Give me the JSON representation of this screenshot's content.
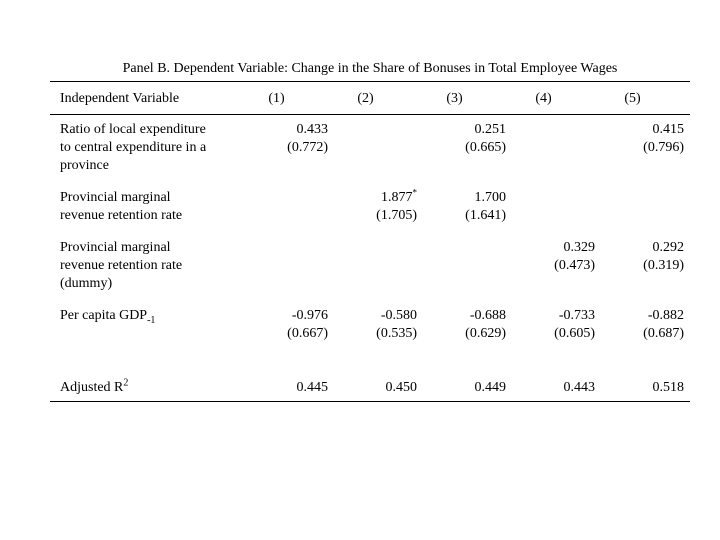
{
  "page": {
    "background_color": "#ffffff",
    "text_color": "#000000"
  },
  "table": {
    "title": "Panel B. Dependent Variable: Change in the Share of Bonuses in Total Employee Wages",
    "header": {
      "label": "Independent Variable",
      "columns": [
        "(1)",
        "(2)",
        "(3)",
        "(4)",
        "(5)"
      ]
    },
    "rows": [
      {
        "label": "Ratio of local expenditure\nto central expenditure in a\nprovince",
        "cells": [
          {
            "est": "0.433",
            "se": "(0.772)"
          },
          {},
          {
            "est": "0.251",
            "se": "(0.665)"
          },
          {},
          {
            "est": "0.415",
            "se": "(0.796)"
          }
        ]
      },
      {
        "label": "Provincial marginal\nrevenue retention rate",
        "cells": [
          {},
          {
            "est": "1.877",
            "sup": "*",
            "se": "(1.705)"
          },
          {
            "est": "1.700",
            "se": "(1.641)"
          },
          {},
          {}
        ]
      },
      {
        "label": "Provincial marginal\nrevenue retention rate\n(dummy)",
        "cells": [
          {},
          {},
          {},
          {
            "est": "0.329",
            "se": "(0.473)"
          },
          {
            "est": "0.292",
            "se": "(0.319)"
          }
        ]
      },
      {
        "label": "Per capita GDP",
        "label_sub": "-1",
        "cells": [
          {
            "est": "-0.976",
            "se": "(0.667)"
          },
          {
            "est": "-0.580",
            "se": "(0.535)"
          },
          {
            "est": "-0.688",
            "se": "(0.629)"
          },
          {
            "est": "-0.733",
            "se": "(0.605)"
          },
          {
            "est": "-0.882",
            "se": "(0.687)"
          }
        ]
      }
    ],
    "footer": {
      "label": "Adjusted R",
      "label_sup": "2",
      "values": [
        "0.445",
        "0.450",
        "0.449",
        "0.443",
        "0.518"
      ]
    }
  }
}
